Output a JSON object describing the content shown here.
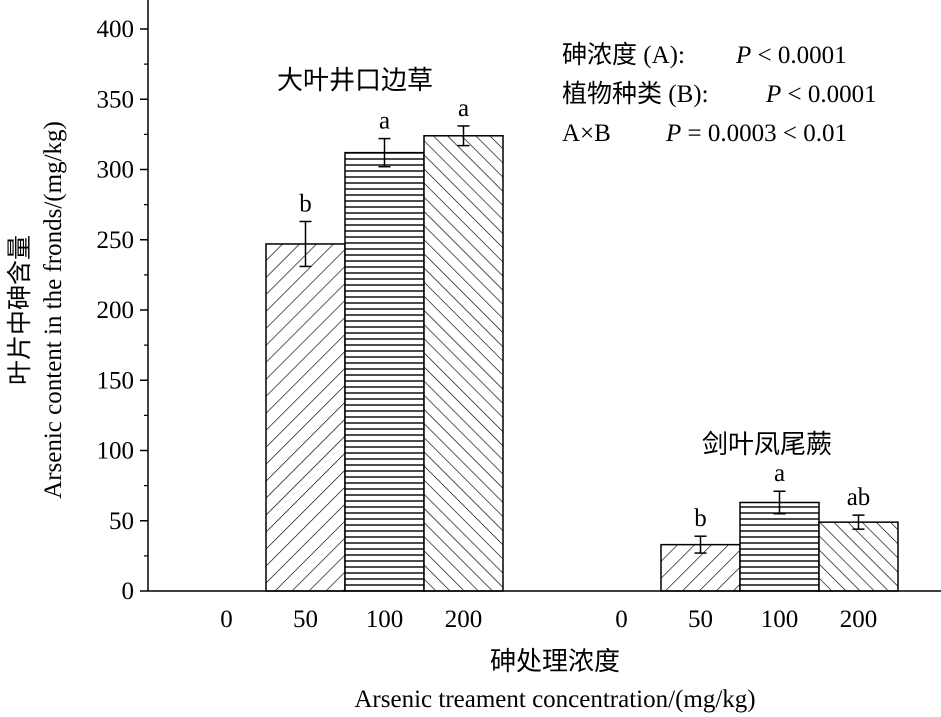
{
  "chart_data": {
    "type": "bar",
    "ylabel_cn": "叶片中砷含量",
    "ylabel_en": "Arsenic content in the fronds/(mg/kg)",
    "xlabel_cn": "砷处理浓度",
    "xlabel_en": "Arsenic treament concentration/(mg/kg)",
    "ylim": [
      0,
      420
    ],
    "yticks": [
      "0",
      "50",
      "100",
      "150",
      "200",
      "250",
      "300",
      "350",
      "400"
    ],
    "yticks_values": [
      0,
      50,
      100,
      150,
      200,
      250,
      300,
      350,
      400
    ],
    "stats": [
      {
        "label": "砷浓度 (A):",
        "p_letter": "P",
        "p_text": " < 0.0001"
      },
      {
        "label": "植物种类 (B):",
        "p_letter": "P",
        "p_text": " < 0.0001"
      },
      {
        "label": "A×B",
        "p_letter": "P",
        "p_text": " = 0.0003 < 0.01"
      }
    ],
    "groups": [
      {
        "name": "大叶井口边草",
        "categories": [
          "0",
          "50",
          "100",
          "200"
        ],
        "values": [
          0,
          247,
          312,
          324
        ],
        "errors": [
          0,
          16,
          10,
          7
        ],
        "letters": [
          "",
          "b",
          "a",
          "a"
        ]
      },
      {
        "name": "剑叶凤尾蕨",
        "categories": [
          "0",
          "50",
          "100",
          "200"
        ],
        "values": [
          0,
          33,
          63,
          49
        ],
        "errors": [
          0,
          6,
          8,
          5
        ],
        "letters": [
          "",
          "b",
          "a",
          "ab"
        ]
      }
    ],
    "patterns": [
      "none",
      "diag",
      "horiz",
      "diag-dense"
    ]
  }
}
